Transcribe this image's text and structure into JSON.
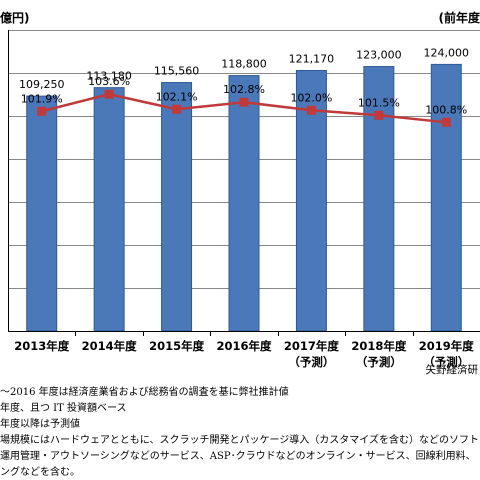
{
  "chart_data": {
    "type": "bar",
    "y_unit_label": "億円)",
    "y2_unit_label": "(前年度",
    "categories": [
      {
        "year": "2013年度",
        "sub": ""
      },
      {
        "year": "2014年度",
        "sub": ""
      },
      {
        "year": "2015年度",
        "sub": ""
      },
      {
        "year": "2016年度",
        "sub": ""
      },
      {
        "year": "2017年度",
        "sub": "（予測）"
      },
      {
        "year": "2018年度",
        "sub": "（予測）"
      },
      {
        "year": "2019年度",
        "sub": "（予測）"
      }
    ],
    "values": [
      109250,
      113180,
      115560,
      118800,
      121170,
      123000,
      124000
    ],
    "value_labels": [
      "109,250",
      "113,180",
      "115,560",
      "118,800",
      "121,170",
      "123,000",
      "124,000"
    ],
    "ylim": [
      0,
      140000
    ],
    "y_grid_step": 20000,
    "growth_rate": [
      101.9,
      103.6,
      102.1,
      102.8,
      102.0,
      101.5,
      100.8
    ],
    "growth_labels": [
      "101.9%",
      "103.6%",
      "102.1%",
      "102.8%",
      "102.0%",
      "101.5%",
      "100.8%"
    ],
    "growth_axis_range": [
      80,
      110
    ],
    "grid": true,
    "colors": {
      "bar": "#4a78b8",
      "bar_edge": "#2f5a94",
      "line": "#c0393b",
      "grid": "#888888"
    }
  },
  "source": "矢野経済研",
  "notes": [
    "～2016 年度は経済産業省および総務省の調査を基に弊社推計値",
    "年度、且つ IT 投資額ベース",
    "年度以降は予測値",
    "場規模にはハードウェアとともに、スクラッチ開発とパッケージ導入（カスタマイズを含む）などのソフトウ",
    "運用管理・アウトソーシングなどのサービス、ASP･クラウドなどのオンライン・サービス、回線利用料、",
    "ングなどを含む。"
  ]
}
